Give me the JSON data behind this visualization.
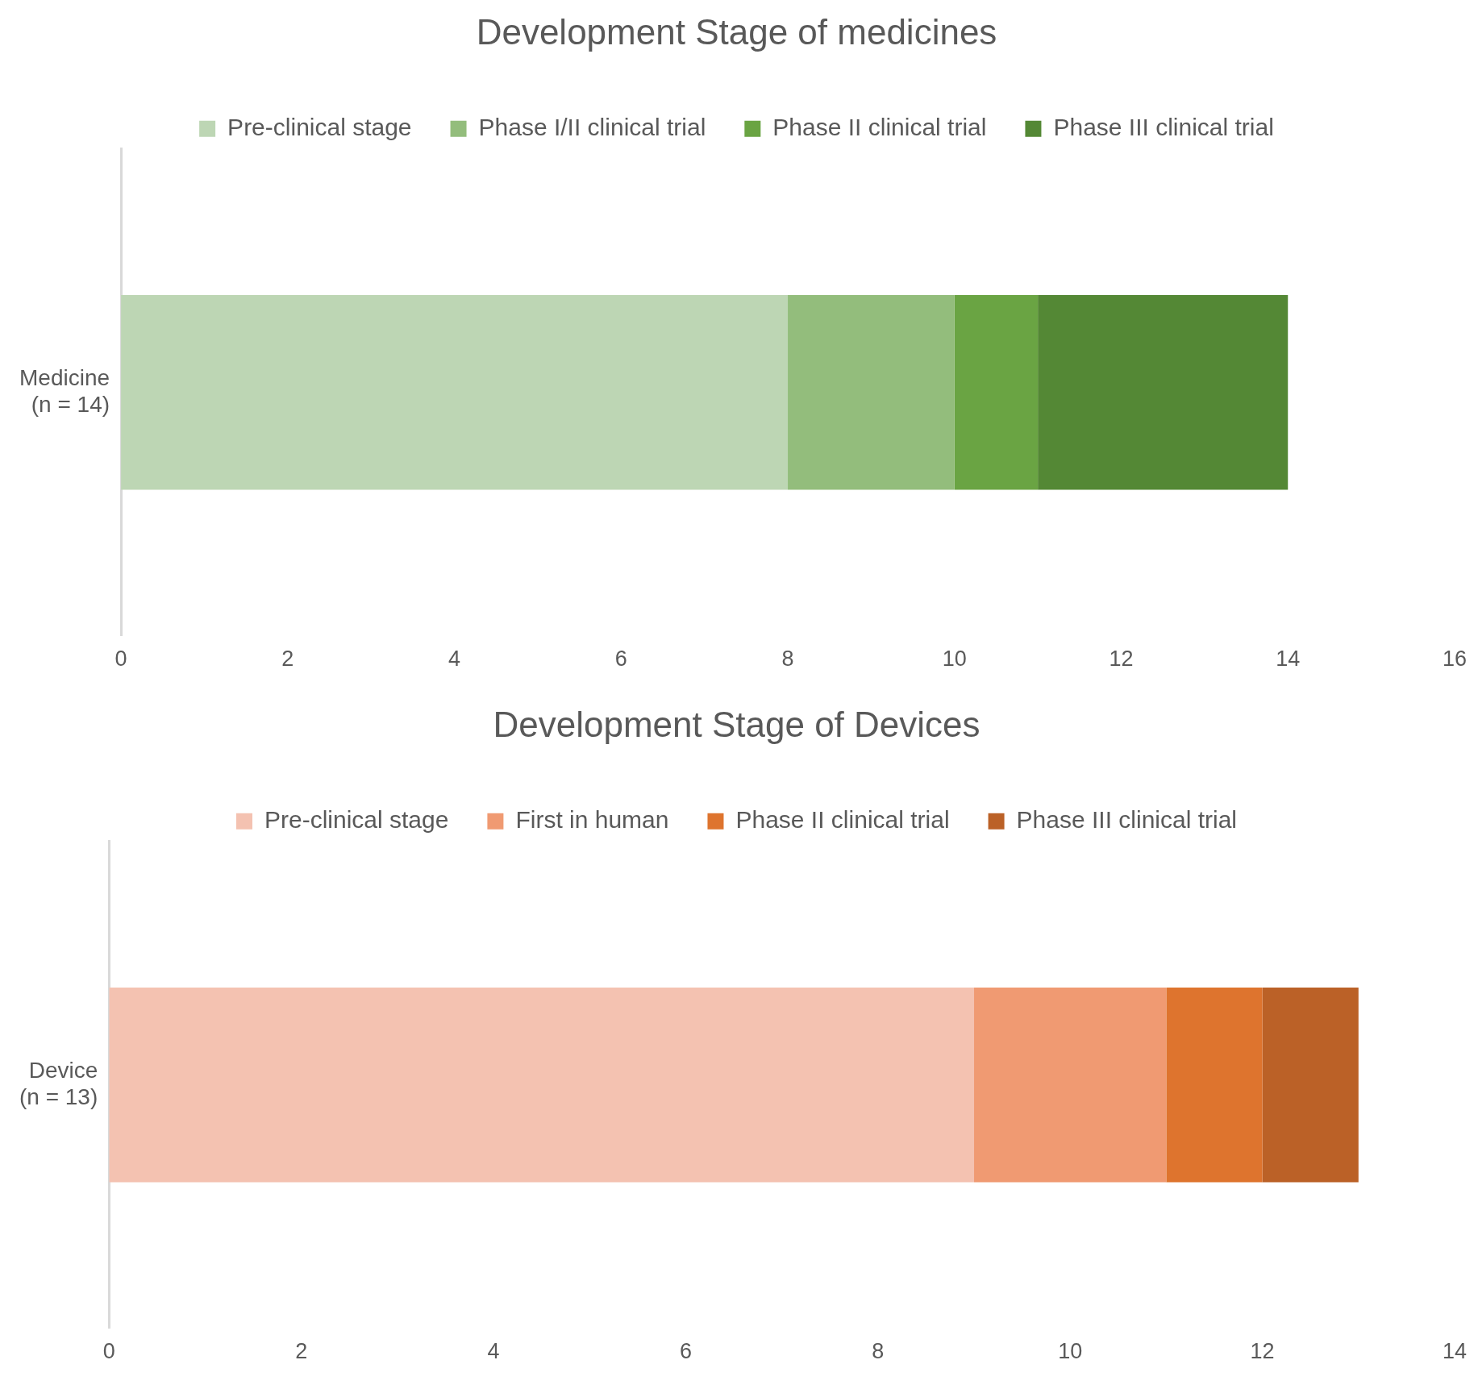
{
  "chart_data": [
    {
      "type": "bar",
      "orientation": "horizontal",
      "stacked": true,
      "title": "Development Stage of medicines",
      "categories": [
        "Medicine\n(n = 14)"
      ],
      "series": [
        {
          "name": "Pre-clinical stage",
          "color": "#bdd6b4",
          "values": [
            8
          ]
        },
        {
          "name": "Phase I/II clinical trial",
          "color": "#93bd7c",
          "values": [
            2
          ]
        },
        {
          "name": "Phase II clinical trial",
          "color": "#6aa443",
          "values": [
            1
          ]
        },
        {
          "name": "Phase III clinical trial",
          "color": "#548835",
          "values": [
            3
          ]
        }
      ],
      "xlim": [
        0,
        16
      ],
      "xticks": [
        0,
        2,
        4,
        6,
        8,
        10,
        12,
        14,
        16
      ],
      "grid": false,
      "legend": "top"
    },
    {
      "type": "bar",
      "orientation": "horizontal",
      "stacked": true,
      "title": "Development Stage of Devices",
      "categories": [
        "Device\n(n = 13)"
      ],
      "series": [
        {
          "name": "Pre-clinical stage",
          "color": "#f4c2b1",
          "values": [
            9
          ]
        },
        {
          "name": "First in human",
          "color": "#f09a72",
          "values": [
            2
          ]
        },
        {
          "name": "Phase II clinical trial",
          "color": "#de742e",
          "values": [
            1
          ]
        },
        {
          "name": "Phase III clinical trial",
          "color": "#bb6127",
          "values": [
            1
          ]
        }
      ],
      "xlim": [
        0,
        14
      ],
      "xticks": [
        0,
        2,
        4,
        6,
        8,
        10,
        12,
        14
      ],
      "grid": false,
      "legend": "top"
    }
  ]
}
